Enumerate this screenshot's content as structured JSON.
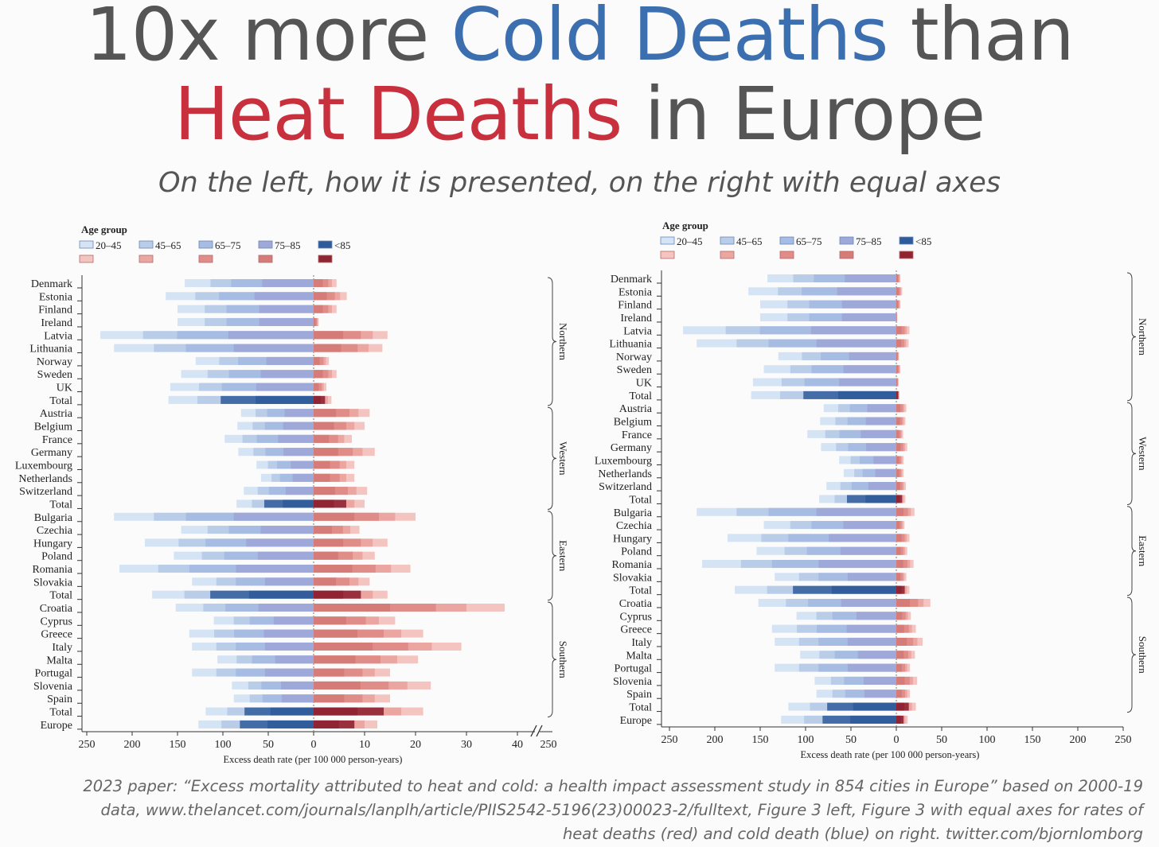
{
  "header": {
    "title_part1": "10x more ",
    "title_cold": "Cold Deaths",
    "title_part2": " than",
    "title_heat": "Heat Deaths",
    "title_part3": " in Europe",
    "subtitle": "On the left, how it is presented, on the right with equal axes"
  },
  "footer": {
    "line1": "2023 paper: “Excess mortality attributed to heat and cold: a health impact assessment study in 854 cities in Europe” based on 2000-19",
    "line2": "data, www.thelancet.com/journals/lanplh/article/PIIS2542-5196(23)00023-2/fulltext, Figure 3 left, Figure 3 with equal axes for rates of",
    "line3": "heat deaths (red) and cold death (blue) on right. twitter.com/bjornlomborg"
  },
  "colors": {
    "cold": [
      "#d4e4f4",
      "#b9cde8",
      "#a7bce2",
      "#9ea9da",
      "#2f5b9b"
    ],
    "heat": [
      "#f4c4c0",
      "#eca6a2",
      "#e08d89",
      "#d57c79",
      "#8f2432"
    ]
  },
  "chart_data": [
    {
      "type": "bar",
      "legend_title": "Age group",
      "age_groups": [
        "20–45",
        "45–65",
        "65–75",
        "75–85",
        "<85"
      ],
      "xlabel": "Excess death rate (per 100 000 person-years)",
      "cold_ticks": [
        "250",
        "200",
        "150",
        "100",
        "50",
        "0"
      ],
      "heat_ticks": [
        "10",
        "20",
        "30",
        "40"
      ],
      "break_tick": "250",
      "cold_xlim": [
        250,
        0
      ],
      "heat_xlim": [
        0,
        40
      ],
      "regions": [
        "Northern",
        "Western",
        "Eastern",
        "Southern"
      ],
      "categories": [
        "Denmark",
        "Estonia",
        "Finland",
        "Ireland",
        "Latvia",
        "Lithuania",
        "Norway",
        "Sweden",
        "UK",
        "Total",
        "Austria",
        "Belgium",
        "France",
        "Germany",
        "Luxembourg",
        "Netherlands",
        "Switzerland",
        "Total",
        "Bulgaria",
        "Czechia",
        "Hungary",
        "Poland",
        "Romania",
        "Slovakia",
        "Total",
        "Croatia",
        "Cyprus",
        "Greece",
        "Italy",
        "Malta",
        "Portugal",
        "Slovenia",
        "Spain",
        "Total",
        "Europe"
      ],
      "cold_values": [
        142,
        163,
        150,
        150,
        235,
        220,
        130,
        146,
        158,
        160,
        80,
        84,
        98,
        83,
        63,
        58,
        77,
        85,
        220,
        146,
        186,
        154,
        214,
        134,
        178,
        152,
        110,
        137,
        134,
        106,
        134,
        90,
        88,
        119,
        127
      ],
      "heat_values": [
        4.5,
        6.5,
        4.5,
        1,
        14.5,
        13.5,
        3,
        4.5,
        2.5,
        3.5,
        11,
        10,
        7.5,
        12,
        8,
        8,
        10.5,
        10,
        20,
        9,
        14.5,
        12,
        19,
        11,
        14.5,
        37.5,
        16,
        21.5,
        29,
        20.5,
        15,
        23,
        15,
        21.5,
        12.5
      ]
    },
    {
      "type": "bar",
      "legend_title": "Age group",
      "age_groups": [
        "20–45",
        "45–65",
        "65–75",
        "75–85",
        "<85"
      ],
      "xlabel": "Excess death rate (per 100 000 person-years)",
      "cold_ticks": [
        "250",
        "200",
        "150",
        "100",
        "50",
        "0"
      ],
      "heat_ticks": [
        "50",
        "100",
        "150",
        "200",
        "250"
      ],
      "cold_xlim": [
        250,
        0
      ],
      "heat_xlim": [
        0,
        250
      ],
      "regions": [
        "Northern",
        "Western",
        "Eastern",
        "Southern"
      ],
      "categories": [
        "Denmark",
        "Estonia",
        "Finland",
        "Ireland",
        "Latvia",
        "Lithuania",
        "Norway",
        "Sweden",
        "UK",
        "Total",
        "Austria",
        "Belgium",
        "France",
        "Germany",
        "Luxembourg",
        "Netherlands",
        "Switzerland",
        "Total",
        "Bulgaria",
        "Czechia",
        "Hungary",
        "Poland",
        "Romania",
        "Slovakia",
        "Total",
        "Croatia",
        "Cyprus",
        "Greece",
        "Italy",
        "Malta",
        "Portugal",
        "Slovenia",
        "Spain",
        "Total",
        "Europe"
      ],
      "cold_values": [
        142,
        163,
        150,
        150,
        235,
        220,
        130,
        146,
        158,
        160,
        80,
        84,
        98,
        83,
        63,
        58,
        77,
        85,
        220,
        146,
        186,
        154,
        214,
        134,
        178,
        152,
        110,
        137,
        134,
        106,
        134,
        90,
        88,
        119,
        127
      ],
      "heat_values": [
        4.5,
        6.5,
        4.5,
        1,
        14.5,
        13.5,
        3,
        4.5,
        2.5,
        3.5,
        11,
        10,
        7.5,
        12,
        8,
        8,
        10.5,
        10,
        20,
        9,
        14.5,
        12,
        19,
        11,
        14.5,
        37.5,
        16,
        21.5,
        29,
        20.5,
        15,
        23,
        15,
        21.5,
        12.5
      ]
    }
  ]
}
